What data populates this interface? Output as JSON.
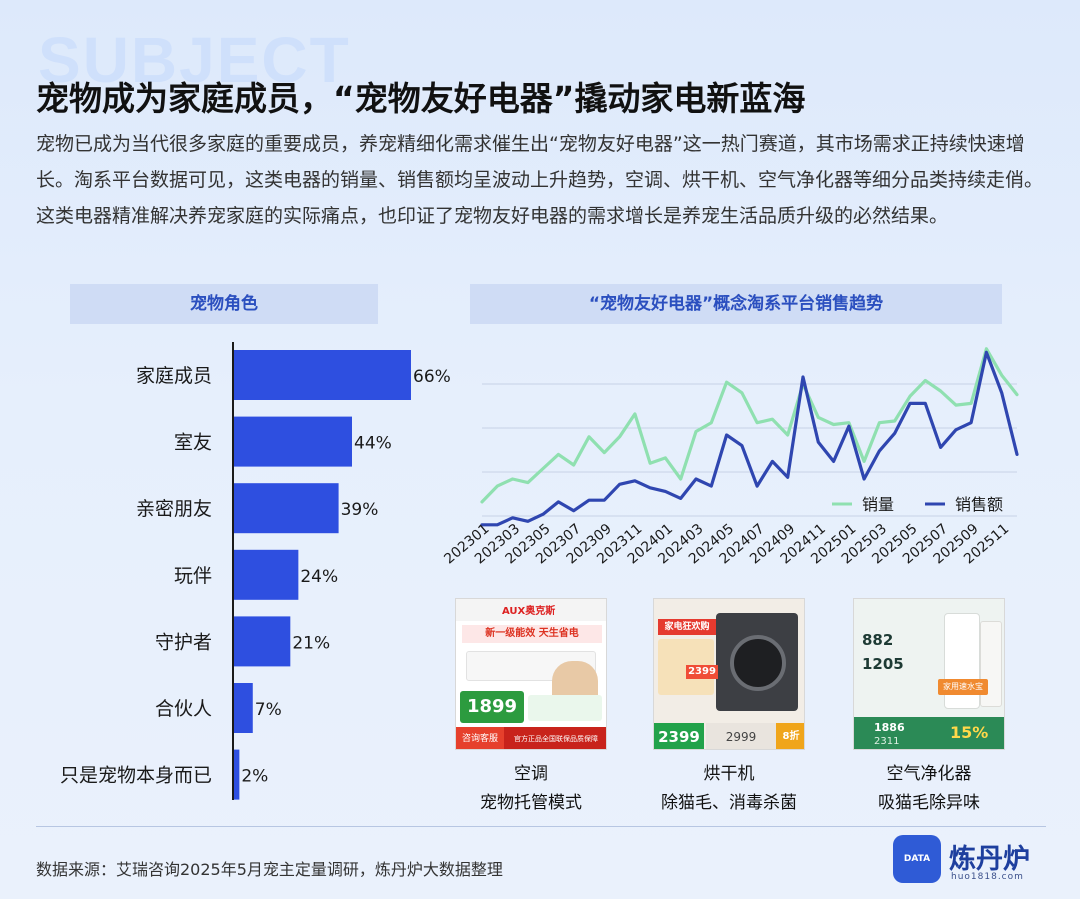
{
  "watermark": "SUBJECT",
  "title": "宠物成为家庭成员，“宠物友好电器”撬动家电新蓝海",
  "intro": "宠物已成为当代很多家庭的重要成员，养宠精细化需求催生出“宠物友好电器”这一热门赛道，其市场需求正持续快速增长。淘系平台数据可见，这类电器的销量、销售额均呈波动上升趋势，空调、烘干机、空气净化器等细分品类持续走俏。这类电器精准解决养宠家庭的实际痛点，也印证了宠物友好电器的需求增长是养宠生活品质升级的必然结果。",
  "chart_data": [
    {
      "type": "bar",
      "orientation": "horizontal",
      "title": "宠物角色",
      "categories": [
        "家庭成员",
        "室友",
        "亲密朋友",
        "玩伴",
        "守护者",
        "合伙人",
        "只是宠物本身而已"
      ],
      "values": [
        66,
        44,
        39,
        24,
        21,
        7,
        2
      ],
      "value_labels": [
        "66%",
        "44%",
        "39%",
        "24%",
        "21%",
        "7%",
        "2%"
      ],
      "xlim": [
        0,
        70
      ],
      "color": "#2e4fe0"
    },
    {
      "type": "line",
      "title": "“宠物友好电器”概念淘系平台销售趋势",
      "x": [
        "202301",
        "202302",
        "202303",
        "202304",
        "202305",
        "202306",
        "202307",
        "202308",
        "202309",
        "202310",
        "202311",
        "202312",
        "202401",
        "202402",
        "202403",
        "202404",
        "202405",
        "202406",
        "202407",
        "202408",
        "202409",
        "202410",
        "202411",
        "202412",
        "202501",
        "202502",
        "202503",
        "202504",
        "202505",
        "202506",
        "202507",
        "202508",
        "202509",
        "202510",
        "202511",
        "202512"
      ],
      "xticks": [
        "202301",
        "202303",
        "202305",
        "202307",
        "202309",
        "202311",
        "202401",
        "202403",
        "202405",
        "202407",
        "202409",
        "202411",
        "202501",
        "202503",
        "202505",
        "202507",
        "202509",
        "202511"
      ],
      "ylim": [
        0,
        100
      ],
      "grid": true,
      "legend": "bottom-right",
      "series": [
        {
          "name": "销量",
          "color": "#8fe0b0",
          "values": [
            8,
            17,
            21,
            19,
            27,
            35,
            29,
            45,
            36,
            45,
            58,
            30,
            33,
            21,
            48,
            53,
            76,
            70,
            53,
            55,
            46,
            75,
            56,
            52,
            53,
            31,
            53,
            54,
            68,
            77,
            71,
            63,
            64,
            95,
            80,
            69
          ]
        },
        {
          "name": "销售额",
          "color": "#2f46b0",
          "values": [
            -5,
            -5,
            -1,
            -3,
            1,
            8,
            3,
            9,
            9,
            18,
            20,
            16,
            14,
            10,
            21,
            17,
            46,
            40,
            17,
            31,
            22,
            79,
            42,
            31,
            51,
            21,
            37,
            47,
            64,
            64,
            39,
            49,
            53,
            93,
            70,
            35
          ]
        }
      ]
    }
  ],
  "products": [
    {
      "name": "空调",
      "desc": "宠物托管模式",
      "icon": "air-conditioner-product-image"
    },
    {
      "name": "烘干机",
      "desc": "除猫毛、消毒杀菌",
      "icon": "dryer-product-image"
    },
    {
      "name": "空气净化器",
      "desc": "吸猫毛除异味",
      "icon": "air-purifier-product-image"
    }
  ],
  "product_images": {
    "ac": {
      "brand": "AUX奥克斯",
      "headline": "新一级能效 天生省电",
      "price": "1899",
      "footer": "官方正品全国联保品质保障",
      "consult": "咨询客服"
    },
    "dryer": {
      "badge": "家电狂欢购",
      "price1": "2399",
      "price2": "2999",
      "deal": "8折"
    },
    "purifier": {
      "cadr1": "882",
      "cadr2": "1205",
      "tag": "家用速水宝",
      "price1": "1886",
      "price2": "2311",
      "pct": "15%"
    }
  },
  "source": "数据来源：艾瑞咨询2025年5月宠主定量调研，炼丹炉大数据整理",
  "logo": {
    "name": "炼丹炉",
    "url": "huo1818.com",
    "badge": "DATA"
  }
}
